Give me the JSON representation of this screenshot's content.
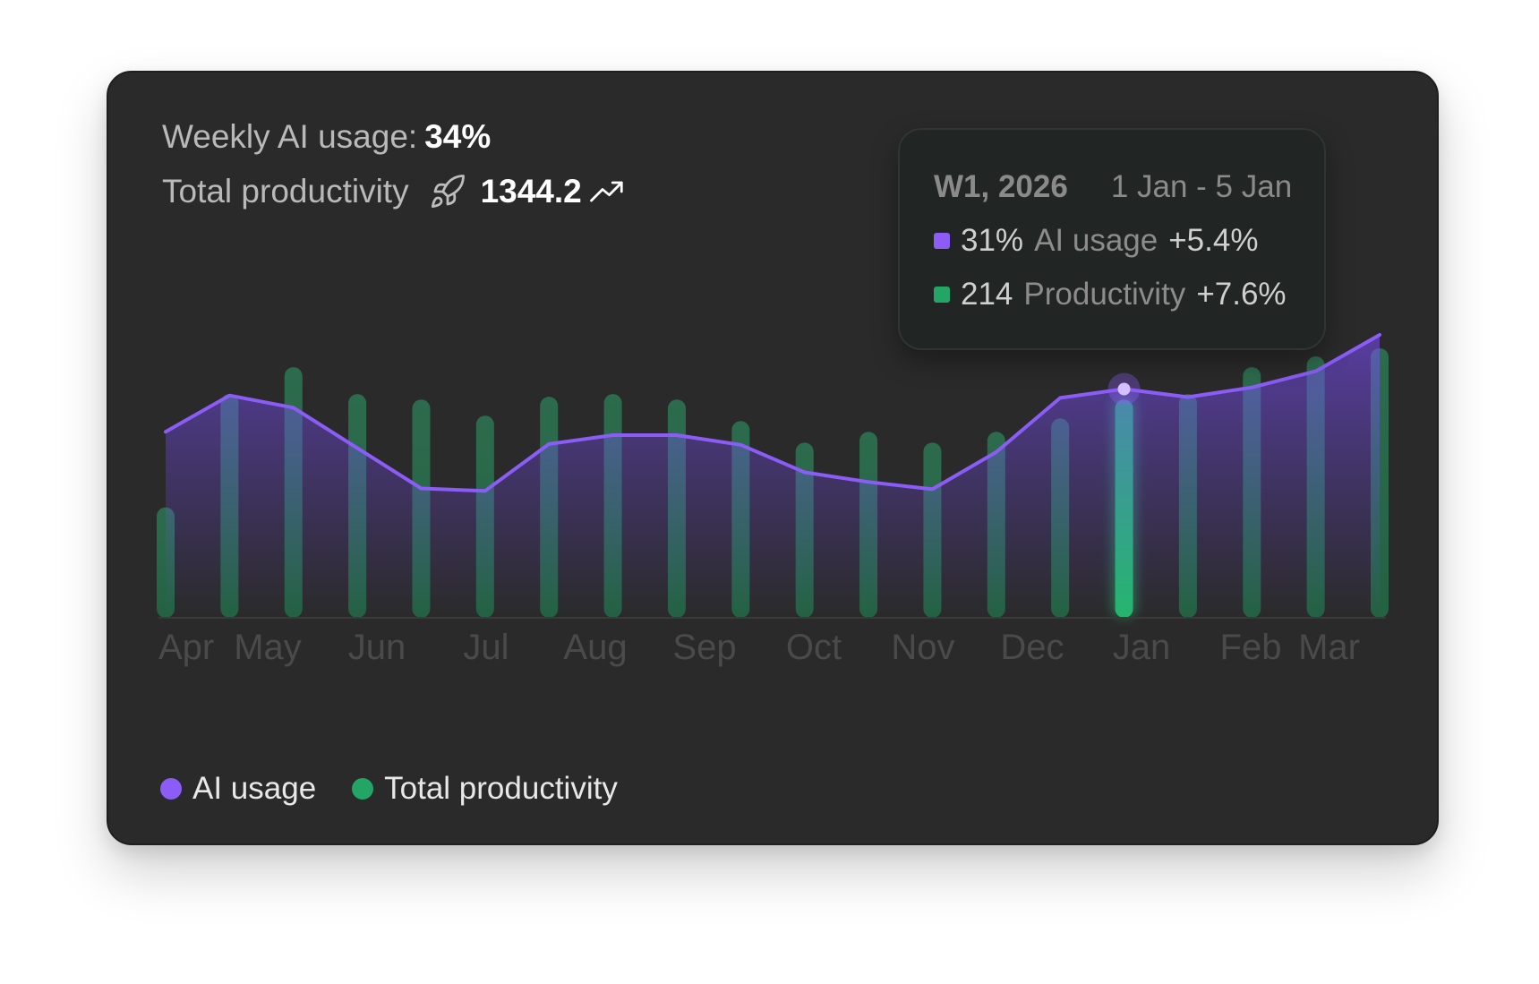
{
  "summary": {
    "ai_label": "Weekly AI usage:",
    "ai_value": "34%",
    "prod_label": "Total productivity",
    "prod_value": "1344.2"
  },
  "tooltip": {
    "week": "W1, 2026",
    "range": "1 Jan - 5 Jan",
    "ai_value": "31%",
    "ai_label": "AI usage",
    "ai_change": "+5.4%",
    "prod_value": "214",
    "prod_label": "Productivity",
    "prod_change": "+7.6%"
  },
  "legend": [
    {
      "label": "AI usage",
      "color": "#8b5cf6"
    },
    {
      "label": "Total productivity",
      "color": "#22a565"
    }
  ],
  "colors": {
    "ai": "#8b5cf6",
    "productivity": "#22a565",
    "productivity_highlight": "#25b56e",
    "card_bg": "#2a2a2a"
  },
  "icons": {
    "rocket": "rocket-icon",
    "trend": "trend-up-icon"
  },
  "chart_data": {
    "type": "bar+line",
    "x_labels": [
      "Apr",
      "May",
      "Jun",
      "Jul",
      "Aug",
      "Sep",
      "Oct",
      "Nov",
      "Dec",
      "Jan",
      "Feb",
      "Mar"
    ],
    "series": [
      {
        "name": "Total productivity",
        "kind": "bar",
        "values": [
          41,
          83,
          93,
          83,
          81,
          75,
          82,
          83,
          81,
          73,
          65,
          69,
          65,
          69,
          74,
          81,
          83,
          93,
          97,
          100
        ]
      },
      {
        "name": "AI usage",
        "kind": "line",
        "values": [
          23,
          27.5,
          26,
          21,
          16,
          15.7,
          21.5,
          22.6,
          22.6,
          21.4,
          18,
          16.8,
          15.9,
          20.5,
          27.2,
          28.3,
          27.3,
          28.5,
          30.5,
          35
        ]
      }
    ],
    "highlight_index": 15,
    "ylim_bars": [
      0,
      100
    ],
    "ylim_line": [
      0,
      35
    ]
  }
}
